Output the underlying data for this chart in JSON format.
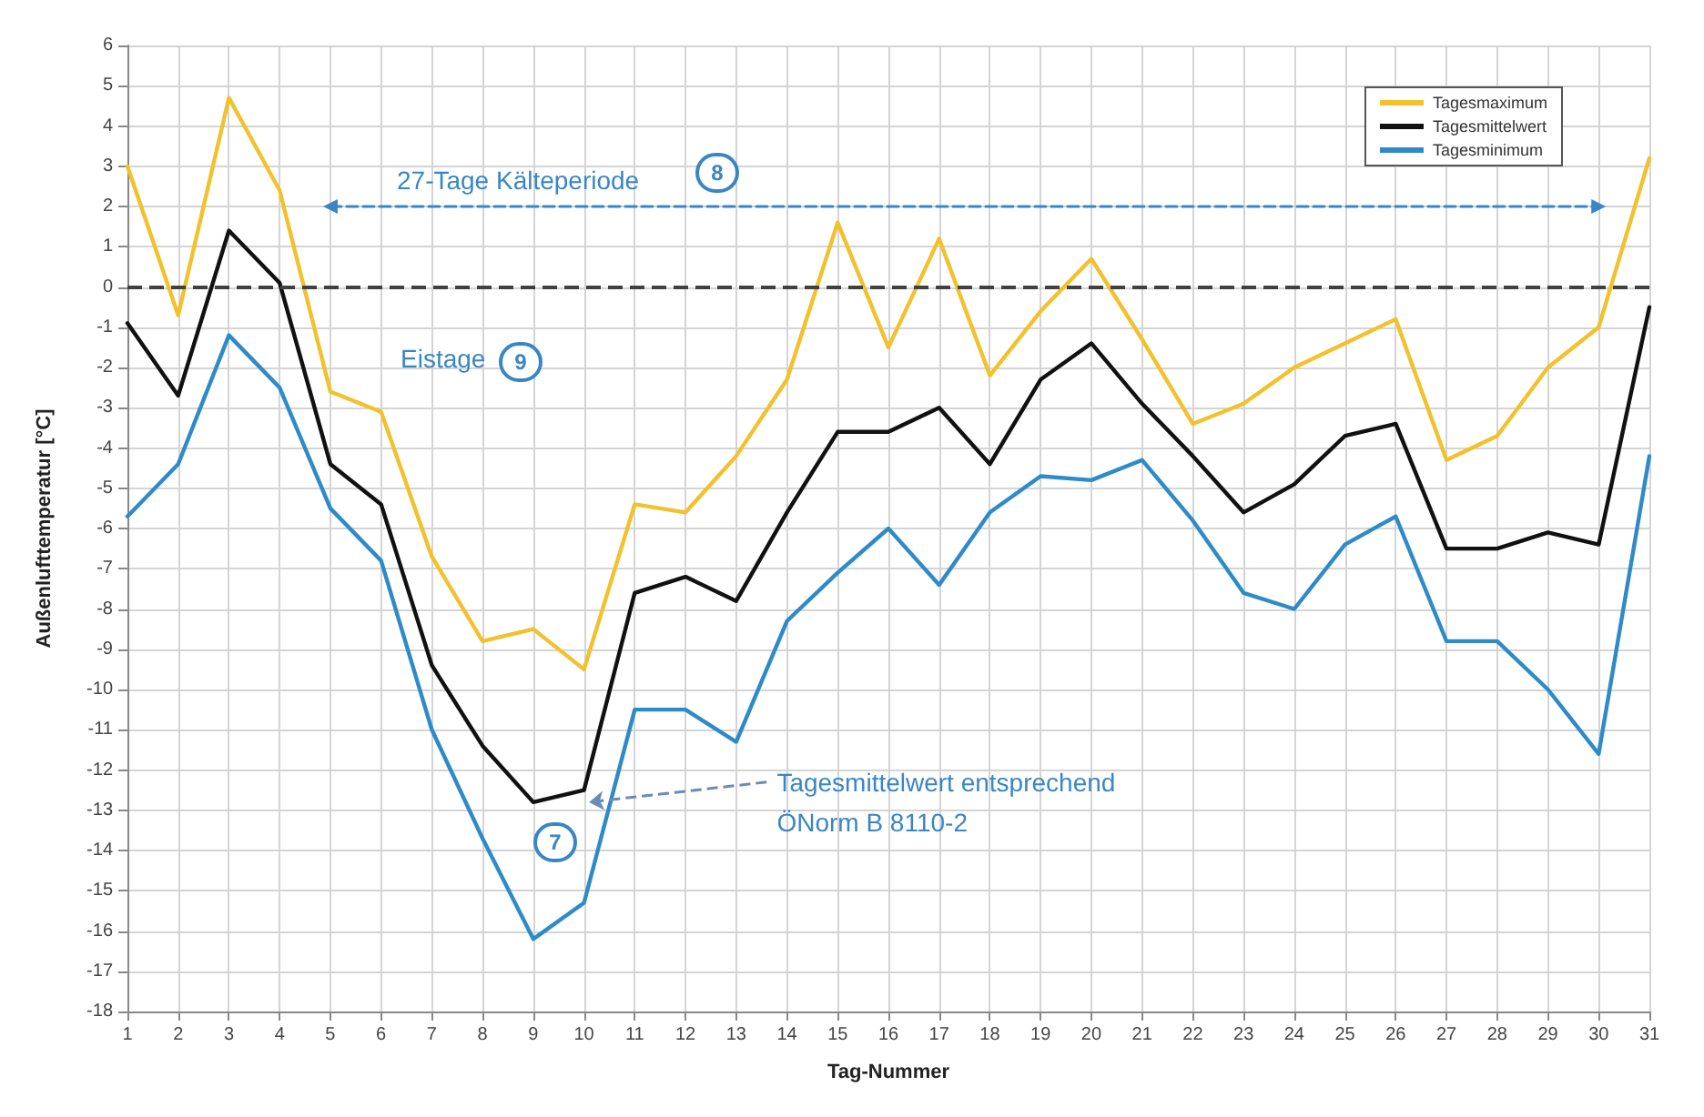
{
  "chart_data": {
    "type": "line",
    "xlabel": "Tag-Nummer",
    "ylabel": "Außenlufttemperatur [°C]",
    "x": [
      1,
      2,
      3,
      4,
      5,
      6,
      7,
      8,
      9,
      10,
      11,
      12,
      13,
      14,
      15,
      16,
      17,
      18,
      19,
      20,
      21,
      22,
      23,
      24,
      25,
      26,
      27,
      28,
      29,
      30,
      31
    ],
    "series": [
      {
        "name": "Tagesmaximum",
        "color": "#f2c12e",
        "values": [
          3.0,
          -0.7,
          4.7,
          2.4,
          -2.6,
          -3.1,
          -6.7,
          -8.8,
          -8.5,
          -9.5,
          -5.4,
          -5.6,
          -4.2,
          -2.3,
          1.6,
          -1.5,
          1.2,
          -2.2,
          -0.6,
          0.7,
          -1.3,
          -3.4,
          -2.9,
          -2.0,
          -1.4,
          -0.8,
          -4.3,
          -3.7,
          -2.0,
          -1.0,
          3.2
        ]
      },
      {
        "name": "Tagesmittelwert",
        "color": "#111111",
        "values": [
          -0.9,
          -2.7,
          1.4,
          0.1,
          -4.4,
          -5.4,
          -9.4,
          -11.4,
          -12.8,
          -12.5,
          -7.6,
          -7.2,
          -7.8,
          -5.6,
          -3.6,
          -3.6,
          -3.0,
          -4.4,
          -2.3,
          -1.4,
          -2.9,
          -4.2,
          -5.6,
          -4.9,
          -3.7,
          -3.4,
          -6.5,
          -6.5,
          -6.1,
          -6.4,
          -0.5
        ]
      },
      {
        "type": "line",
        "color": "#3a86c4",
        "x": [
          5,
          30
        ],
        "values": [
          2,
          2
        ],
        "line_style": "dashed",
        "marker": "triangle"
      },
      {
        "name": "Tagesminimum",
        "color": "#2e8bc8",
        "values": [
          -5.7,
          -4.4,
          -1.2,
          -2.5,
          -5.5,
          -6.8,
          -11.0,
          -13.7,
          -16.2,
          -15.3,
          -10.5,
          -10.5,
          -11.3,
          -8.3,
          -7.1,
          -6.0,
          -7.4,
          -5.6,
          -4.7,
          -4.8,
          -4.3,
          -5.8,
          -7.6,
          -8.0,
          -6.4,
          -5.7,
          -8.8,
          -8.8,
          -10.0,
          -11.6,
          -4.2
        ]
      }
    ],
    "xlim": [
      1,
      31
    ],
    "xticks": [
      1,
      2,
      3,
      4,
      5,
      6,
      7,
      8,
      9,
      10,
      11,
      12,
      13,
      14,
      15,
      16,
      17,
      18,
      19,
      20,
      21,
      22,
      23,
      24,
      25,
      26,
      27,
      28,
      29,
      30,
      31
    ],
    "ylim": [
      -18,
      6
    ],
    "yticks": [
      -18,
      -17,
      -16,
      -15,
      -14,
      -13,
      -12,
      -11,
      -10,
      -9,
      -8,
      -7,
      -6,
      -5,
      -4,
      -3,
      -2,
      -1,
      0,
      1,
      2,
      3,
      4,
      5,
      6
    ],
    "ref_lines": [
      {
        "axis": "y",
        "value": 0,
        "color": "#404040",
        "line_style": "dashed"
      }
    ],
    "annotations": [
      "27-Tage Kälteperiode",
      "8",
      "Eistage",
      "9",
      {
        "text": "Tagesmittelwert entsprechend\nÖNorm B 8110-2",
        "x": 10,
        "y": -12.5
      },
      "7"
    ],
    "grid": true,
    "legend": "top right",
    "marker": "none",
    "line_style": "solid"
  }
}
